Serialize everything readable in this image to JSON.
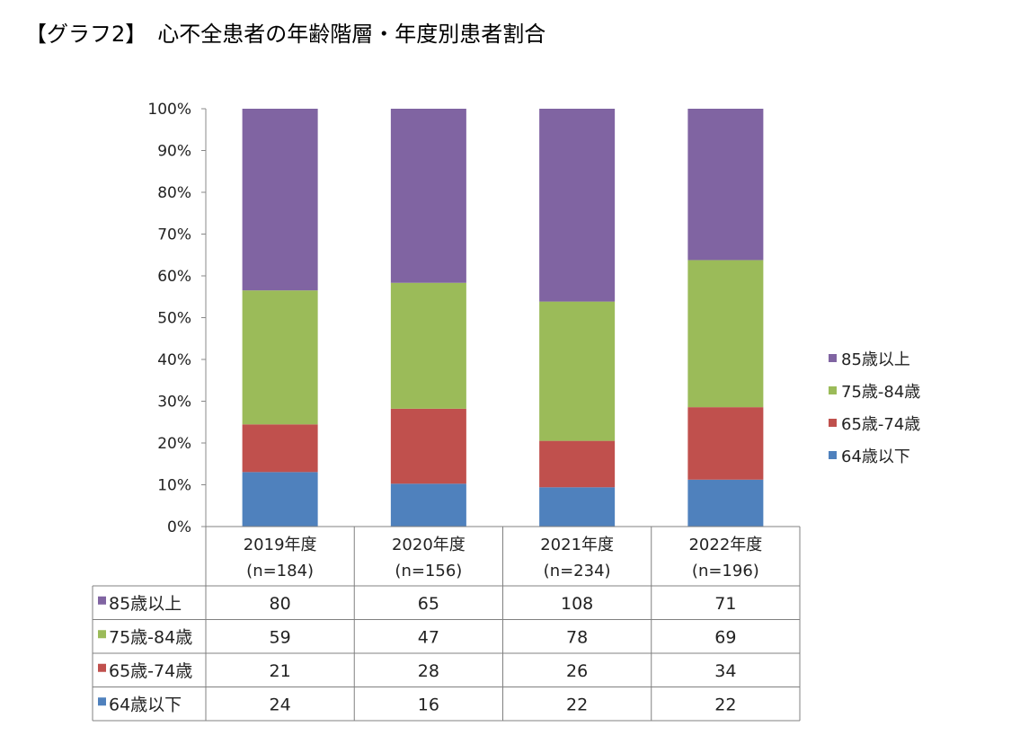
{
  "title": "【グラフ2】　心不全患者の年齢階層・年度別患者割合",
  "chart_data": {
    "type": "bar",
    "stacked": true,
    "normalized": true,
    "categories": [
      "2019年度",
      "2020年度",
      "2021年度",
      "2022年度"
    ],
    "category_sublabels": [
      "(n=184)",
      "(n=156)",
      "(n=234)",
      "(n=196)"
    ],
    "series": [
      {
        "name": "64歳以下",
        "color": "#4f81bd",
        "values": [
          24,
          16,
          22,
          22
        ]
      },
      {
        "name": "65歳-74歳",
        "color": "#c0504d",
        "values": [
          21,
          28,
          26,
          34
        ]
      },
      {
        "name": "75歳-84歳",
        "color": "#9bbb59",
        "values": [
          59,
          47,
          78,
          69
        ]
      },
      {
        "name": "85歳以上",
        "color": "#8064a2",
        "values": [
          80,
          65,
          108,
          71
        ]
      }
    ],
    "ylim": [
      0,
      100
    ],
    "ytick_labels": [
      "0%",
      "10%",
      "20%",
      "30%",
      "40%",
      "50%",
      "60%",
      "70%",
      "80%",
      "90%",
      "100%"
    ],
    "legend_position": "right",
    "legend_order": [
      "85歳以上",
      "75歳-84歳",
      "65歳-74歳",
      "64歳以下"
    ],
    "data_table_order": [
      "85歳以上",
      "75歳-84歳",
      "65歳-74歳",
      "64歳以下"
    ],
    "grid": false
  }
}
